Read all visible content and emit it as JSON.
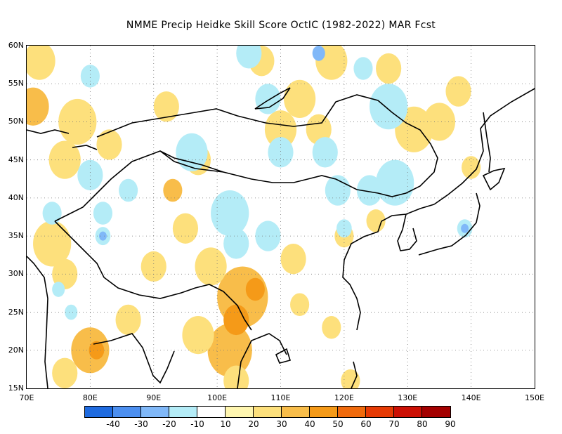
{
  "title": "NMME Precip Heidke Skill Score OctIC (1982-2022) MAR Fcst",
  "map": {
    "lon_min": 70,
    "lon_max": 150,
    "lat_min": 15,
    "lat_max": 60,
    "lat_labels": [
      "60N",
      "55N",
      "50N",
      "45N",
      "40N",
      "35N",
      "30N",
      "25N",
      "20N",
      "15N"
    ],
    "lat_values": [
      60,
      55,
      50,
      45,
      40,
      35,
      30,
      25,
      20,
      15
    ],
    "lon_labels": [
      "70E",
      "80E",
      "90E",
      "100E",
      "110E",
      "120E",
      "130E",
      "140E",
      "150E"
    ],
    "lon_values": [
      70,
      80,
      90,
      100,
      110,
      120,
      130,
      140,
      150
    ]
  },
  "colorbar": {
    "colors": [
      "#1f6be0",
      "#4c8ff0",
      "#80b8f8",
      "#b4ecf7",
      "#ffffff",
      "#fff6b0",
      "#fde07c",
      "#f8bd4a",
      "#f59a18",
      "#f06a0c",
      "#e63a04",
      "#cc1004",
      "#a40000"
    ],
    "tick_labels": [
      "-40",
      "-30",
      "-20",
      "-10",
      "10",
      "20",
      "30",
      "40",
      "50",
      "60",
      "70",
      "80",
      "90"
    ]
  },
  "skill_patches": [
    {
      "lon": 72,
      "lat": 58,
      "r": 2.5,
      "level": "20"
    },
    {
      "lon": 71,
      "lat": 52,
      "r": 2.5,
      "level": "30"
    },
    {
      "lon": 78,
      "lat": 50,
      "r": 3,
      "level": "20"
    },
    {
      "lon": 76,
      "lat": 45,
      "r": 2.5,
      "level": "20"
    },
    {
      "lon": 83,
      "lat": 47,
      "r": 2,
      "level": "20"
    },
    {
      "lon": 74,
      "lat": 34,
      "r": 3,
      "level": "20"
    },
    {
      "lon": 76,
      "lat": 30,
      "r": 2,
      "level": "20"
    },
    {
      "lon": 80,
      "lat": 20,
      "r": 3,
      "level": "30"
    },
    {
      "lon": 81,
      "lat": 20,
      "r": 1.2,
      "level": "40"
    },
    {
      "lon": 76,
      "lat": 17,
      "r": 2,
      "level": "20"
    },
    {
      "lon": 86,
      "lat": 24,
      "r": 2,
      "level": "20"
    },
    {
      "lon": 92,
      "lat": 52,
      "r": 2,
      "level": "20"
    },
    {
      "lon": 97,
      "lat": 45,
      "r": 2,
      "level": "20"
    },
    {
      "lon": 93,
      "lat": 41,
      "r": 1.5,
      "level": "30"
    },
    {
      "lon": 95,
      "lat": 36,
      "r": 2,
      "level": "20"
    },
    {
      "lon": 90,
      "lat": 31,
      "r": 2,
      "level": "20"
    },
    {
      "lon": 104,
      "lat": 27,
      "r": 4,
      "level": "30"
    },
    {
      "lon": 106,
      "lat": 28,
      "r": 1.5,
      "level": "40"
    },
    {
      "lon": 102,
      "lat": 20,
      "r": 3.5,
      "level": "30"
    },
    {
      "lon": 103,
      "lat": 24,
      "r": 2,
      "level": "40"
    },
    {
      "lon": 97,
      "lat": 22,
      "r": 2.5,
      "level": "20"
    },
    {
      "lon": 103,
      "lat": 16,
      "r": 2,
      "level": "20"
    },
    {
      "lon": 99,
      "lat": 31,
      "r": 2.5,
      "level": "20"
    },
    {
      "lon": 110,
      "lat": 49,
      "r": 2.5,
      "level": "20"
    },
    {
      "lon": 113,
      "lat": 53,
      "r": 2.5,
      "level": "20"
    },
    {
      "lon": 116,
      "lat": 49,
      "r": 2,
      "level": "20"
    },
    {
      "lon": 107,
      "lat": 58,
      "r": 2,
      "level": "20"
    },
    {
      "lon": 118,
      "lat": 58,
      "r": 2.5,
      "level": "20"
    },
    {
      "lon": 127,
      "lat": 57,
      "r": 2,
      "level": "20"
    },
    {
      "lon": 131,
      "lat": 49,
      "r": 3,
      "level": "20"
    },
    {
      "lon": 135,
      "lat": 50,
      "r": 2.5,
      "level": "20"
    },
    {
      "lon": 138,
      "lat": 54,
      "r": 2,
      "level": "20"
    },
    {
      "lon": 140,
      "lat": 44,
      "r": 1.5,
      "level": "20"
    },
    {
      "lon": 112,
      "lat": 32,
      "r": 2,
      "level": "20"
    },
    {
      "lon": 113,
      "lat": 26,
      "r": 1.5,
      "level": "20"
    },
    {
      "lon": 118,
      "lat": 23,
      "r": 1.5,
      "level": "20"
    },
    {
      "lon": 121,
      "lat": 16,
      "r": 1.5,
      "level": "20"
    },
    {
      "lon": 120,
      "lat": 35,
      "r": 1.5,
      "level": "20"
    },
    {
      "lon": 125,
      "lat": 37,
      "r": 1.5,
      "level": "20"
    }
  ],
  "negative_patches": [
    {
      "lon": 80,
      "lat": 43,
      "r": 2,
      "level": "-10"
    },
    {
      "lon": 86,
      "lat": 41,
      "r": 1.5,
      "level": "-10"
    },
    {
      "lon": 74,
      "lat": 38,
      "r": 1.5,
      "level": "-10"
    },
    {
      "lon": 82,
      "lat": 38,
      "r": 1.5,
      "level": "-10"
    },
    {
      "lon": 82,
      "lat": 35,
      "r": 1.2,
      "level": "-10"
    },
    {
      "lon": 82,
      "lat": 35,
      "r": 0.6,
      "level": "-20"
    },
    {
      "lon": 75,
      "lat": 28,
      "r": 1,
      "level": "-10"
    },
    {
      "lon": 77,
      "lat": 25,
      "r": 1,
      "level": "-10"
    },
    {
      "lon": 80,
      "lat": 56,
      "r": 1.5,
      "level": "-10"
    },
    {
      "lon": 96,
      "lat": 46,
      "r": 2.5,
      "level": "-10"
    },
    {
      "lon": 102,
      "lat": 38,
      "r": 3,
      "level": "-10"
    },
    {
      "lon": 103,
      "lat": 34,
      "r": 2,
      "level": "-10"
    },
    {
      "lon": 108,
      "lat": 35,
      "r": 2,
      "level": "-10"
    },
    {
      "lon": 105,
      "lat": 59,
      "r": 2,
      "level": "-10"
    },
    {
      "lon": 108,
      "lat": 53,
      "r": 2,
      "level": "-10"
    },
    {
      "lon": 110,
      "lat": 46,
      "r": 2,
      "level": "-10"
    },
    {
      "lon": 117,
      "lat": 46,
      "r": 2,
      "level": "-10"
    },
    {
      "lon": 119,
      "lat": 41,
      "r": 2,
      "level": "-10"
    },
    {
      "lon": 127,
      "lat": 52,
      "r": 3,
      "level": "-10"
    },
    {
      "lon": 123,
      "lat": 57,
      "r": 1.5,
      "level": "-10"
    },
    {
      "lon": 128,
      "lat": 42,
      "r": 3,
      "level": "-10"
    },
    {
      "lon": 124,
      "lat": 41,
      "r": 2,
      "level": "-10"
    },
    {
      "lon": 120,
      "lat": 36,
      "r": 1.2,
      "level": "-10"
    },
    {
      "lon": 139,
      "lat": 36,
      "r": 1.2,
      "level": "-10"
    },
    {
      "lon": 139,
      "lat": 36,
      "r": 0.6,
      "level": "-20"
    },
    {
      "lon": 116,
      "lat": 59,
      "r": 1,
      "level": "-20"
    }
  ]
}
